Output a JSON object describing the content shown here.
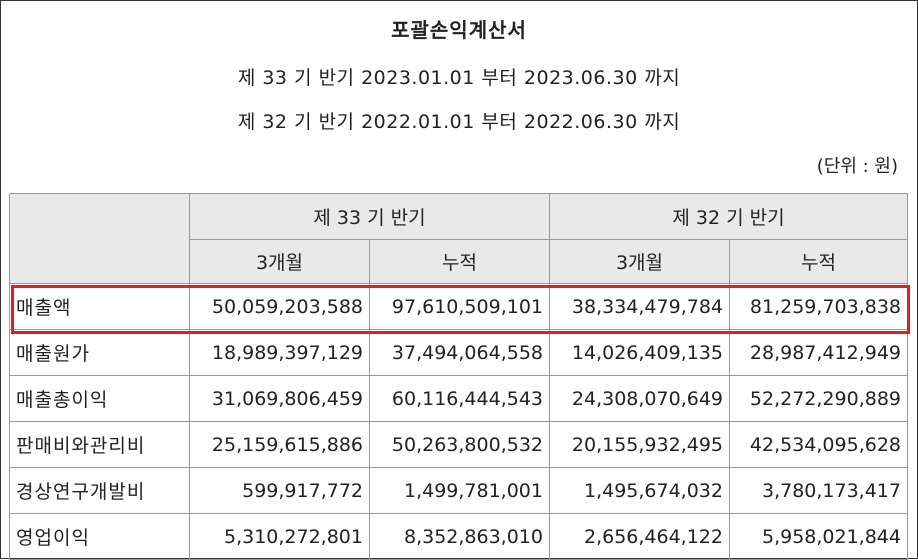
{
  "title": "포괄손익계산서",
  "periods": [
    "제 33 기 반기 2023.01.01 부터 2023.06.30 까지",
    "제 32 기 반기 2022.01.01 부터 2022.06.30 까지"
  ],
  "unit": "(단위 : 원)",
  "table": {
    "group_headers": [
      "제 33 기 반기",
      "제 32 기 반기"
    ],
    "sub_headers": [
      "3개월",
      "누적",
      "3개월",
      "누적"
    ],
    "rows": [
      {
        "label": "매출액",
        "values": [
          "50,059,203,588",
          "97,610,509,101",
          "38,334,479,784",
          "81,259,703,838"
        ],
        "highlighted": true
      },
      {
        "label": "매출원가",
        "values": [
          "18,989,397,129",
          "37,494,064,558",
          "14,026,409,135",
          "28,987,412,949"
        ]
      },
      {
        "label": "매출총이익",
        "values": [
          "31,069,806,459",
          "60,116,444,543",
          "24,308,070,649",
          "52,272,290,889"
        ]
      },
      {
        "label": "판매비와관리비",
        "values": [
          "25,159,615,886",
          "50,263,800,532",
          "20,155,932,495",
          "42,534,095,628"
        ]
      },
      {
        "label": "경상연구개발비",
        "values": [
          "599,917,772",
          "1,499,781,001",
          "1,495,674,032",
          "3,780,173,417"
        ]
      },
      {
        "label": "영업이익",
        "values": [
          "5,310,272,801",
          "8,352,863,010",
          "2,656,464,122",
          "5,958,021,844"
        ]
      }
    ]
  },
  "colors": {
    "highlight": "#e02020",
    "header_bg": "#e9e9e9"
  }
}
